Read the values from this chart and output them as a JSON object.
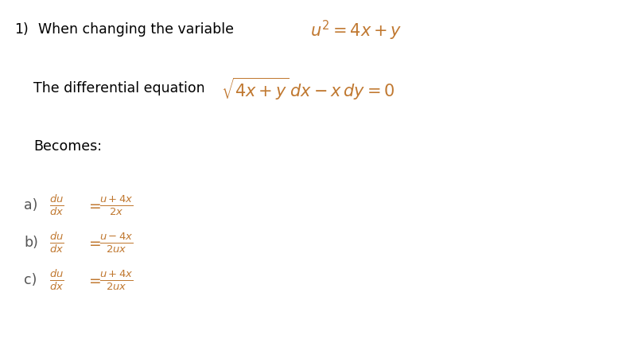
{
  "background_color": "#ffffff",
  "text_color": "#000000",
  "math_color": "#c07830",
  "label_color": "#555555",
  "line1_number": "1)",
  "line1_text": "When changing the variable",
  "line1_eq": "$u^2 = 4x + y$",
  "line2_label": "The differential equation",
  "line2_eq": "$\\sqrt{4x + y}\\, dx - x\\, dy = 0$",
  "line3_label": "Becomes:",
  "options_labels": [
    "a)",
    "b)",
    "c)"
  ],
  "options_lhs": [
    "$\\frac{du}{dx}$",
    "$\\frac{du}{dx}$",
    "$\\frac{du}{dx}$"
  ],
  "options_rhs": [
    "$\\frac{u+4x}{2x}$",
    "$\\frac{u-4x}{2ux}$",
    "$\\frac{u+4x}{2ux}$"
  ],
  "fig_width": 7.82,
  "fig_height": 4.26,
  "dpi": 100
}
